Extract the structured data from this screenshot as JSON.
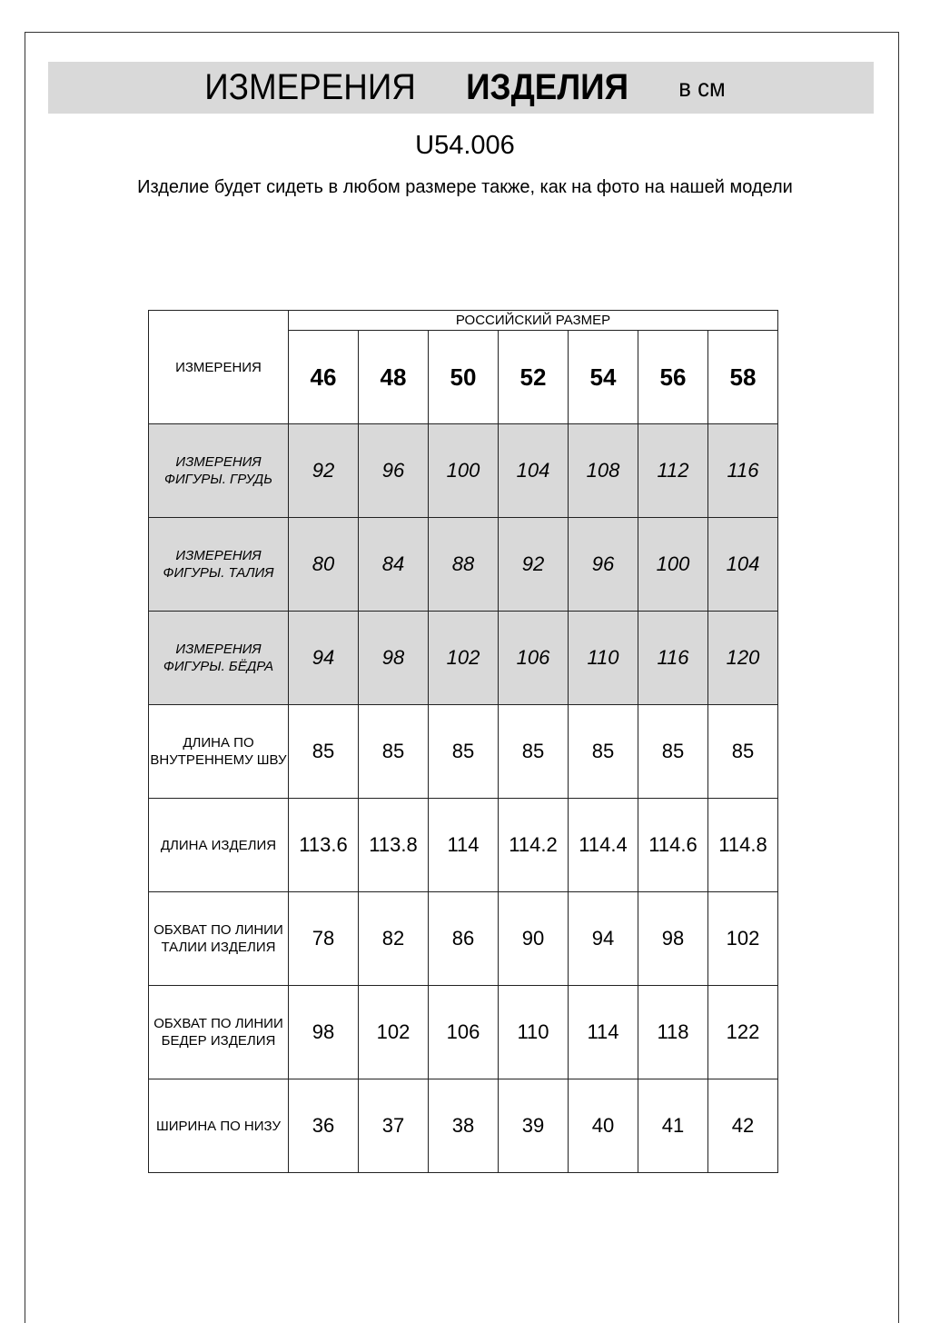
{
  "header": {
    "title_part1": "ИЗМЕРЕНИЯ",
    "title_part2": "ИЗДЕЛИЯ",
    "units": "в см",
    "article": "U54.006",
    "note": "Изделие будет сидеть в любом размере также, как на фото на нашей модели"
  },
  "table": {
    "corner_label": "ИЗМЕРЕНИЯ",
    "group_label": "РОССИЙСКИЙ РАЗМЕР",
    "sizes": [
      "46",
      "48",
      "50",
      "52",
      "54",
      "56",
      "58"
    ],
    "rows": [
      {
        "label": "ИЗМЕРЕНИЯ ФИГУРЫ. ГРУДЬ",
        "values": [
          "92",
          "96",
          "100",
          "104",
          "108",
          "112",
          "116"
        ],
        "shaded": true
      },
      {
        "label": "ИЗМЕРЕНИЯ ФИГУРЫ. ТАЛИЯ",
        "values": [
          "80",
          "84",
          "88",
          "92",
          "96",
          "100",
          "104"
        ],
        "shaded": true
      },
      {
        "label": "ИЗМЕРЕНИЯ ФИГУРЫ. БЁДРА",
        "values": [
          "94",
          "98",
          "102",
          "106",
          "110",
          "116",
          "120"
        ],
        "shaded": true
      },
      {
        "label": "ДЛИНА ПО ВНУТРЕННЕМУ ШВУ",
        "values": [
          "85",
          "85",
          "85",
          "85",
          "85",
          "85",
          "85"
        ],
        "shaded": false
      },
      {
        "label": "ДЛИНА ИЗДЕЛИЯ",
        "values": [
          "113.6",
          "113.8",
          "114",
          "114.2",
          "114.4",
          "114.6",
          "114.8"
        ],
        "shaded": false
      },
      {
        "label": "ОБХВАТ ПО ЛИНИИ ТАЛИИ ИЗДЕЛИЯ",
        "values": [
          "78",
          "82",
          "86",
          "90",
          "94",
          "98",
          "102"
        ],
        "shaded": false
      },
      {
        "label": "ОБХВАТ ПО ЛИНИИ БЕДЕР ИЗДЕЛИЯ",
        "values": [
          "98",
          "102",
          "106",
          "110",
          "114",
          "118",
          "122"
        ],
        "shaded": false
      },
      {
        "label": "ШИРИНА ПО НИЗУ",
        "values": [
          "36",
          "37",
          "38",
          "39",
          "40",
          "41",
          "42"
        ],
        "shaded": false
      }
    ]
  },
  "colors": {
    "shade": "#d9d9d9",
    "border": "#222222"
  }
}
